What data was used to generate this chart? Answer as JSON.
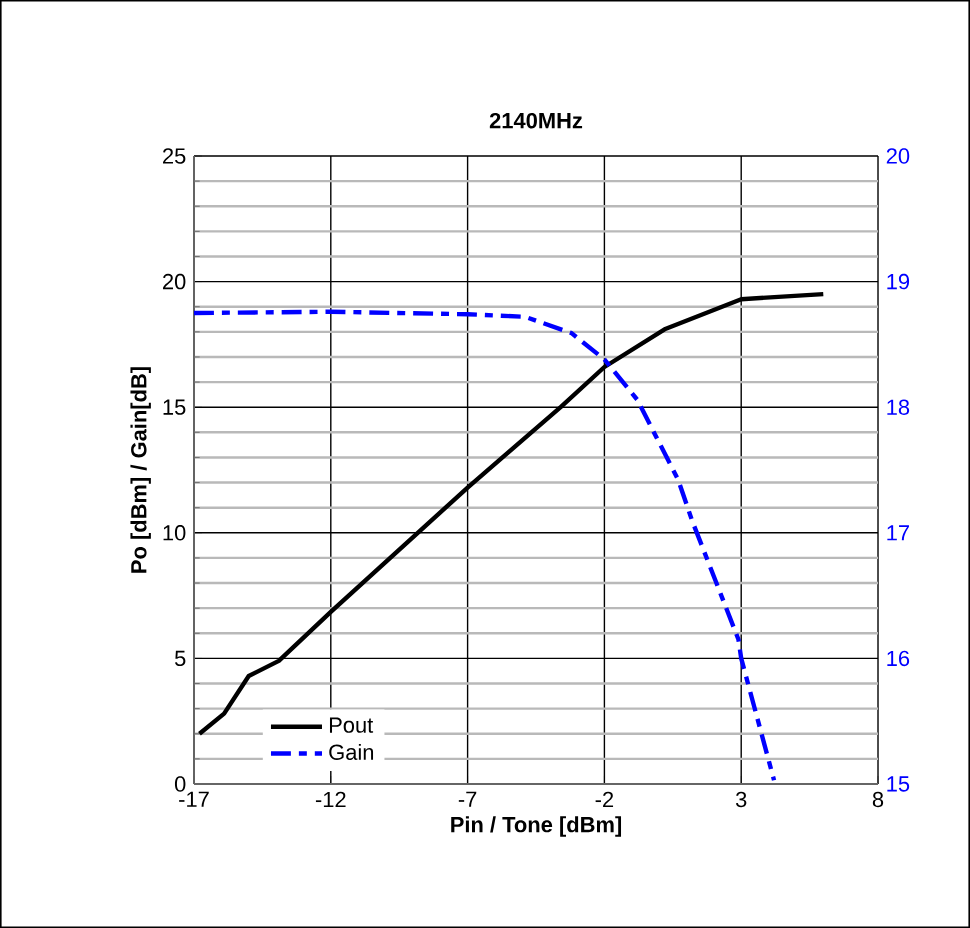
{
  "chart_data": {
    "type": "line",
    "title": "2140MHz",
    "xlabel": "Pin / Tone [dBm]",
    "ylabel": "Po [dBm] / Gain[dB]",
    "xlim": [
      -17,
      8
    ],
    "xticks": [
      -17,
      -12,
      -7,
      -2,
      3,
      8
    ],
    "ylim": [
      0,
      25
    ],
    "yticks": [
      0,
      5,
      10,
      15,
      20,
      25
    ],
    "y2lim": [
      15,
      20
    ],
    "y2ticks": [
      15,
      16,
      17,
      18,
      19,
      20
    ],
    "grid": true,
    "legend": "bottom left",
    "marker": "none",
    "series": [
      {
        "name": "Pout",
        "color": "#000000",
        "line_style": "solid",
        "x": [
          -16.8,
          -15.9,
          -15.0,
          -13.9,
          -12,
          -7,
          -3.6,
          -2,
          0.2,
          3,
          6
        ],
        "values": [
          2.0,
          2.8,
          4.3,
          4.9,
          6.85,
          11.8,
          15.0,
          16.6,
          18.1,
          19.3,
          19.5
        ]
      },
      {
        "name": "Gain",
        "color": "#0000ff",
        "line_style": "dashdot",
        "axis": "y2",
        "x": [
          -17,
          -12,
          -7,
          -4.9,
          -3.2,
          -2,
          -0.8,
          0.7,
          1.2,
          2.9,
          3,
          4.2
        ],
        "values": [
          18.75,
          18.76,
          18.74,
          18.72,
          18.59,
          18.38,
          18.06,
          17.42,
          17.1,
          16.15,
          16.0,
          15.03
        ]
      }
    ]
  }
}
